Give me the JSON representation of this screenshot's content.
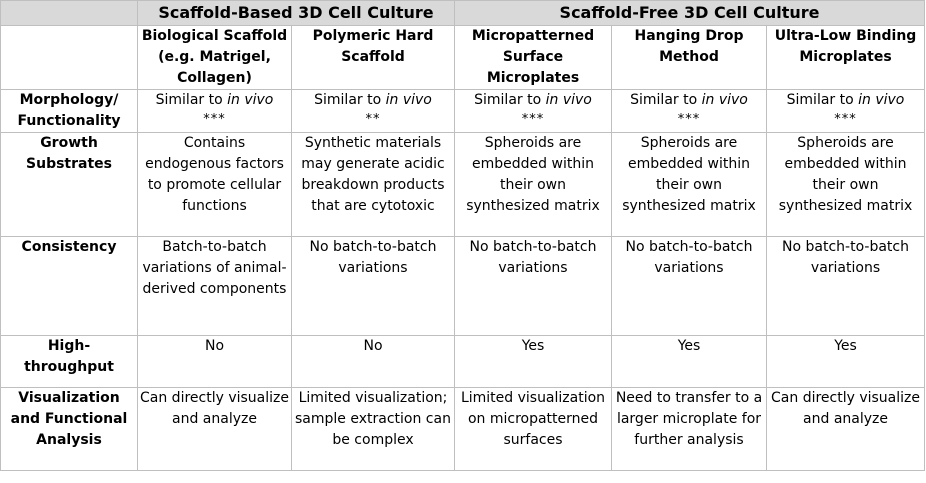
{
  "groups": {
    "scaffold_based": "Scaffold-Based 3D Cell Culture",
    "scaffold_free": "Scaffold-Free 3D Cell Culture"
  },
  "columns": [
    "Biological Scaffold (e.g. Matrigel, Collagen)",
    "Polymeric Hard Scaffold",
    "Micropatterned Surface Microplates",
    "Hanging Drop Method",
    "Ultra-Low Binding Microplates"
  ],
  "rows": {
    "morphology": {
      "label": "Morphology/ Functionality",
      "prefix": "Similar to ",
      "emph": "in vivo",
      "stars": [
        "***",
        "**",
        "***",
        "***",
        "***"
      ]
    },
    "growth": {
      "label": "Growth Substrates",
      "cells": [
        "Contains endogenous factors to promote cellular functions",
        "Synthetic materials may generate acidic breakdown products that are cytotoxic",
        "Spheroids are embedded within their own synthesized matrix",
        "Spheroids are embedded within their own synthesized matrix",
        "Spheroids are embedded within their own synthesized matrix"
      ]
    },
    "consistency": {
      "label": "Consistency",
      "cells": [
        "Batch-to-batch variations of animal-derived components",
        "No batch-to-batch variations",
        "No batch-to-batch variations",
        "No batch-to-batch variations",
        "No batch-to-batch variations"
      ]
    },
    "throughput": {
      "label": "High-throughput",
      "cells": [
        "No",
        "No",
        "Yes",
        "Yes",
        "Yes"
      ]
    },
    "visualization": {
      "label": "Visualization and Functional Analysis",
      "cells": [
        "Can directly visualize and analyze",
        "Limited visualization; sample extraction can be complex",
        "Limited visualization on micropatterned surfaces",
        "Need to transfer to a larger microplate for further analysis",
        "Can directly visualize and analyze"
      ]
    }
  }
}
